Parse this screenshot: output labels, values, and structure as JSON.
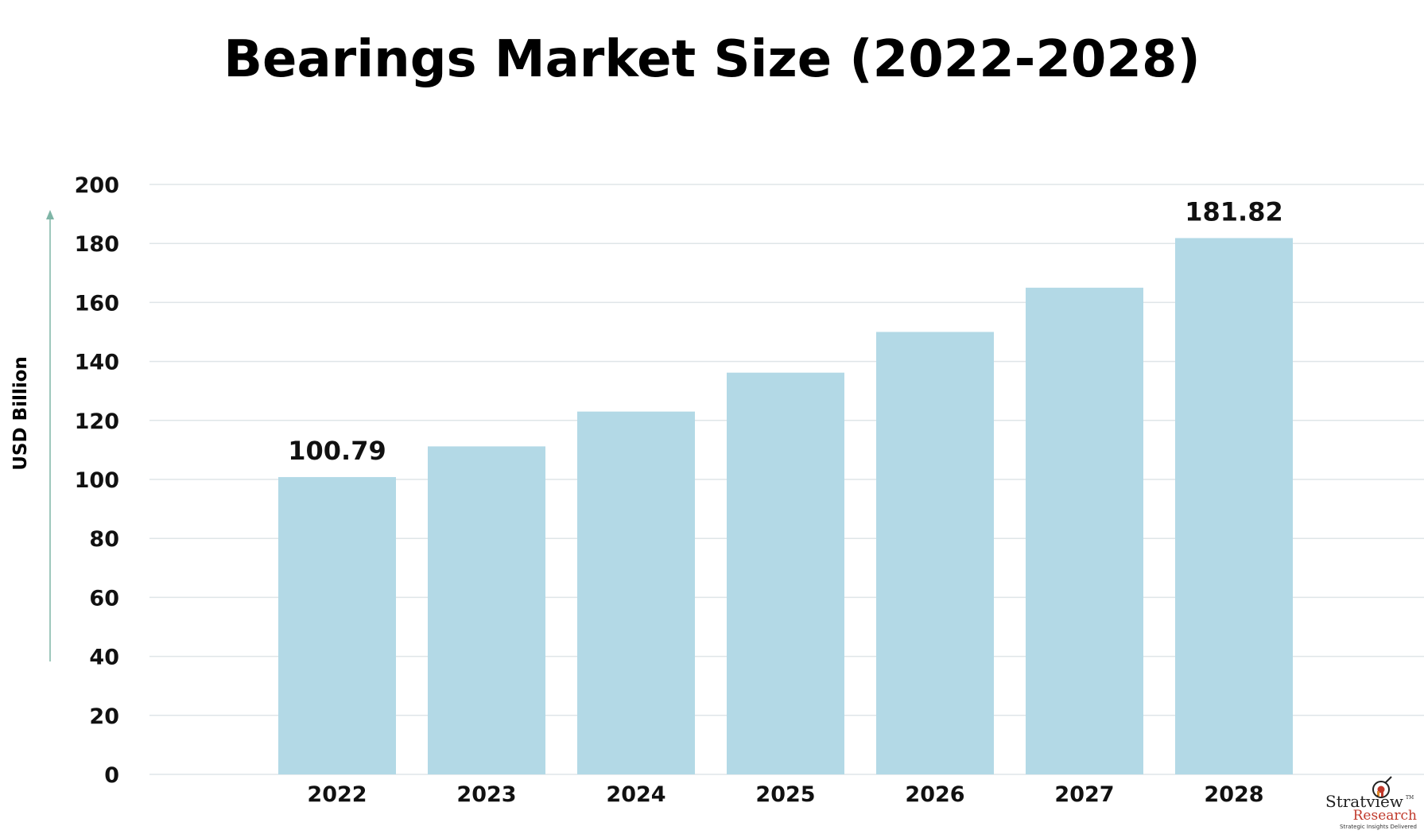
{
  "chart_data": {
    "type": "bar",
    "title": "Bearings Market Size (2022-2028)",
    "ylabel": "USD Billion",
    "xlabel": "",
    "categories": [
      "2022",
      "2023",
      "2024",
      "2025",
      "2026",
      "2027",
      "2028"
    ],
    "values": [
      100.79,
      111.2,
      123.0,
      136.2,
      150.0,
      165.0,
      181.82
    ],
    "data_labels": [
      "100.79",
      null,
      null,
      null,
      null,
      null,
      "181.82"
    ],
    "ylim": [
      0,
      200
    ],
    "yticks": [
      0,
      20,
      40,
      60,
      80,
      100,
      120,
      140,
      160,
      180,
      200
    ],
    "grid": true,
    "bar_color": "#b3d9e6",
    "grid_color": "#dfe5e8",
    "axis_arrow_color": "#7fb5a6"
  },
  "logo": {
    "name": "Stratview",
    "tm": "TM",
    "sub": "Research",
    "tagline": "Strategic Insights Delivered",
    "icon": "target-chart-icon",
    "name_color": "#222222",
    "sub_color": "#c0392b"
  }
}
